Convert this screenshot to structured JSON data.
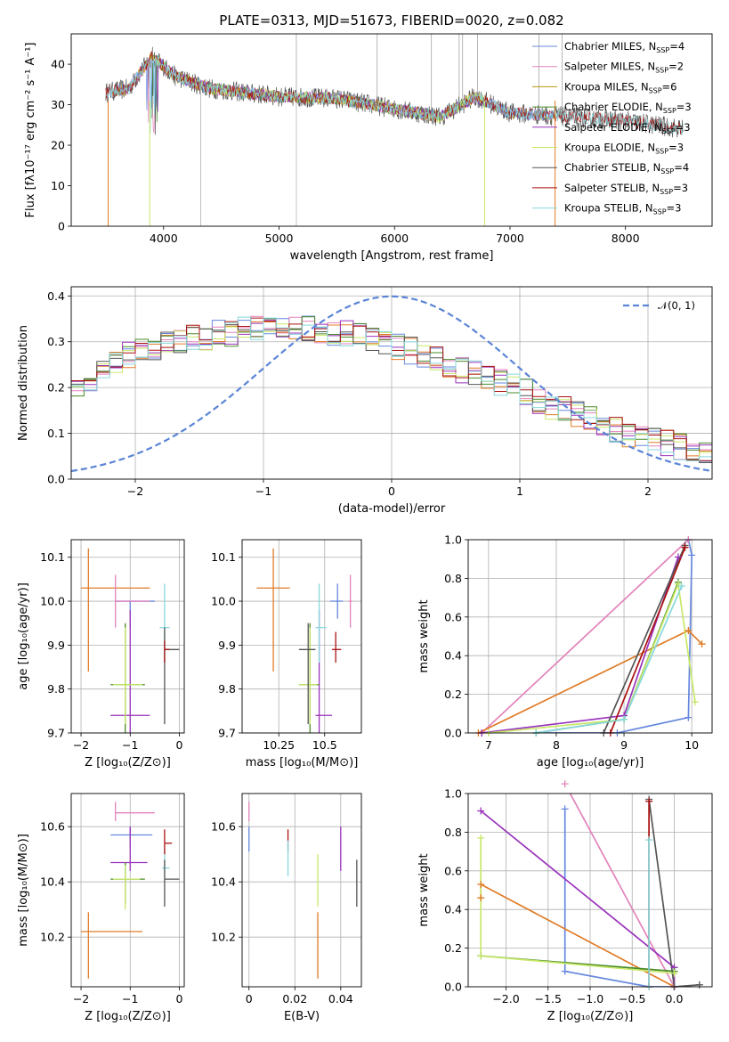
{
  "title": "PLATE=0313, MJD=51673, FIBERID=0020, z=0.082",
  "colors": {
    "Chabrier MILES": "#6688dd",
    "Salpeter MILES": "#e383bb",
    "Kroupa MILES": "#b8960b",
    "Chabrier ELODIE": "#4a8a2a",
    "Salpeter ELODIE": "#9933bb",
    "Kroupa ELODIE": "#c8e868",
    "Chabrier STELIB": "#555555",
    "Salpeter STELIB": "#aa1111",
    "Kroupa STELIB": "#88d8dd",
    "accent_orange": "#e07b26",
    "normal_curve": "#5b85d6"
  },
  "chart_data": [
    {
      "type": "line",
      "id": "spectrum",
      "xlabel": "wavelength [Angstrom, rest frame]",
      "ylabel": "Flux [fλ10⁻¹⁷ erg cm⁻² s⁻¹ A⁻¹]",
      "xlim": [
        3200,
        8750
      ],
      "ylim": [
        0,
        47.5
      ],
      "xticks": [
        4000,
        5000,
        6000,
        7000,
        8000
      ],
      "yticks": [
        0,
        10,
        20,
        30,
        40
      ],
      "grid": false,
      "legend_position": "top-right",
      "continuum": {
        "x": [
          3500,
          3700,
          3900,
          4100,
          4400,
          5000,
          5500,
          6000,
          6400,
          6700,
          7000,
          7500,
          8000,
          8500
        ],
        "y": [
          33,
          34,
          42,
          37,
          34,
          32,
          31.5,
          29,
          27,
          32,
          28,
          27,
          26,
          24
        ]
      },
      "series": [
        {
          "name": "Chabrier MILES, N$_{SSP}$=4",
          "legend": [
            "Chabrier MILES, N",
            "SSP",
            "=4"
          ],
          "x_range": [
            3540,
            7400
          ]
        },
        {
          "name": "Salpeter MILES, N$_{SSP}$=2",
          "legend": [
            "Salpeter MILES, N",
            "SSP",
            "=2"
          ],
          "x_range": [
            3540,
            7400
          ]
        },
        {
          "name": "Kroupa MILES, N$_{SSP}$=6",
          "legend": [
            "Kroupa MILES, N",
            "SSP",
            "=6"
          ],
          "x_range": [
            3540,
            7400
          ]
        },
        {
          "name": "Chabrier ELODIE, N$_{SSP}$=3",
          "legend": [
            "Chabrier ELODIE, N",
            "SSP",
            "=3"
          ],
          "x_range": [
            3900,
            6800
          ]
        },
        {
          "name": "Salpeter ELODIE, N$_{SSP}$=3",
          "legend": [
            "Salpeter ELODIE, N",
            "SSP",
            "=3"
          ],
          "x_range": [
            3900,
            6800
          ]
        },
        {
          "name": "Kroupa ELODIE, N$_{SSP}$=3",
          "legend": [
            "Kroupa ELODIE, N",
            "SSP",
            "=3"
          ],
          "x_range": [
            3900,
            6800
          ]
        },
        {
          "name": "Chabrier STELIB, N$_{SSP}$=4",
          "legend": [
            "Chabrier STELIB, N",
            "SSP",
            "=4"
          ],
          "x_range": [
            3500,
            8500
          ]
        },
        {
          "name": "Salpeter STELIB, N$_{SSP}$=3",
          "legend": [
            "Salpeter STELIB, N",
            "SSP",
            "=3"
          ],
          "x_range": [
            3500,
            8500
          ]
        },
        {
          "name": "Kroupa STELIB, N$_{SSP}$=3",
          "legend": [
            "Kroupa STELIB, N",
            "SSP",
            "=3"
          ],
          "x_range": [
            3500,
            8500
          ]
        }
      ]
    },
    {
      "type": "line",
      "id": "residuals",
      "xlabel": "(data-model)/error",
      "ylabel": "Normed distribution",
      "xlim": [
        -2.5,
        2.5
      ],
      "ylim": [
        0,
        0.42
      ],
      "xticks": [
        -2,
        -1,
        0,
        1,
        2
      ],
      "yticks": [
        0.0,
        0.1,
        0.2,
        0.3,
        0.4
      ],
      "grid": true,
      "legend_position": "top-right",
      "normal_label": "𝒩(0, 1)",
      "bin_width": 0.1,
      "histogram_profile": [
        0.06,
        0.07,
        0.09,
        0.1,
        0.12,
        0.13,
        0.14,
        0.16,
        0.17,
        0.19,
        0.21,
        0.22,
        0.24,
        0.25,
        0.27,
        0.28,
        0.29,
        0.3,
        0.3,
        0.31,
        0.31,
        0.32,
        0.32,
        0.33,
        0.33,
        0.33,
        0.33,
        0.33,
        0.33,
        0.32,
        0.32,
        0.32,
        0.31,
        0.3,
        0.3,
        0.29,
        0.28,
        0.27,
        0.26,
        0.25,
        0.24,
        0.23,
        0.22,
        0.21,
        0.2,
        0.19,
        0.17,
        0.16,
        0.15,
        0.14,
        0.13,
        0.12,
        0.11,
        0.1,
        0.09,
        0.09,
        0.08,
        0.07,
        0.06,
        0.06,
        0.05,
        0.05,
        0.05,
        0.04,
        0.04,
        0.04,
        0.04,
        0.04,
        0.04,
        0.04
      ]
    },
    {
      "type": "scatter",
      "id": "age_vs_Z",
      "xlabel": "Z [log₁₀(Z/Z⊙)]",
      "ylabel": "age  [log₁₀(age/yr)]",
      "xlim": [
        -2.2,
        0.1
      ],
      "ylim": [
        9.7,
        10.14
      ],
      "xticks": [
        -2,
        -1,
        0
      ],
      "yticks": [
        9.7,
        9.8,
        9.9,
        10.0,
        10.1
      ],
      "grid": true,
      "points": [
        {
          "k": "accent_orange",
          "x": -1.85,
          "y": 10.03,
          "xe": [
            -2.0,
            -0.6
          ],
          "ye": [
            9.84,
            10.12
          ]
        },
        {
          "k": "Chabrier MILES",
          "x": -1.0,
          "y": 10.0,
          "xe": [
            -1.3,
            -0.5
          ],
          "ye": [
            9.94,
            10.0
          ]
        },
        {
          "k": "Salpeter MILES",
          "x": -1.3,
          "y": 10.0,
          "xe": [
            -1.3,
            -0.6
          ],
          "ye": [
            9.94,
            10.06
          ]
        },
        {
          "k": "Salpeter ELODIE",
          "x": -1.0,
          "y": 9.74,
          "xe": [
            -1.4,
            -0.6
          ],
          "ye": [
            9.7,
            9.98
          ]
        },
        {
          "k": "Chabrier ELODIE",
          "x": -1.1,
          "y": 9.81,
          "xe": [
            -1.4,
            -0.7
          ],
          "ye": [
            9.7,
            9.95
          ]
        },
        {
          "k": "Kroupa ELODIE",
          "x": -1.1,
          "y": 9.81,
          "xe": [
            -1.35,
            -0.75
          ],
          "ye": [
            9.72,
            9.94
          ]
        },
        {
          "k": "Kroupa STELIB",
          "x": -0.3,
          "y": 9.94,
          "xe": [
            -0.4,
            -0.2
          ],
          "ye": [
            9.86,
            10.04
          ]
        },
        {
          "k": "Chabrier STELIB",
          "x": -0.3,
          "y": 9.89,
          "xe": [
            -0.3,
            0.0
          ],
          "ye": [
            9.72,
            9.94
          ]
        },
        {
          "k": "Salpeter STELIB",
          "x": -0.3,
          "y": 9.89,
          "xe": [
            -0.3,
            -0.2
          ],
          "ye": [
            9.86,
            9.91
          ]
        }
      ]
    },
    {
      "type": "scatter",
      "id": "age_vs_mass",
      "xlabel": "mass [log₁₀(M/M⊙)]",
      "ylabel": "",
      "xlim": [
        10.05,
        10.7
      ],
      "ylim": [
        9.7,
        10.14
      ],
      "xticks": [
        10.25,
        10.5
      ],
      "yticks": [
        9.7,
        9.8,
        9.9,
        10.0,
        10.1
      ],
      "grid": true,
      "points": [
        {
          "k": "accent_orange",
          "x": 10.22,
          "y": 10.03,
          "xe": [
            10.13,
            10.31
          ],
          "ye": [
            9.84,
            10.12
          ]
        },
        {
          "k": "Chabrier MILES",
          "x": 10.57,
          "y": 10.0,
          "xe": [
            10.53,
            10.6
          ],
          "ye": [
            9.96,
            10.04
          ]
        },
        {
          "k": "Salpeter MILES",
          "x": 10.64,
          "y": 10.0,
          "xe": [
            10.63,
            10.65
          ],
          "ye": [
            9.94,
            10.06
          ]
        },
        {
          "k": "Salpeter ELODIE",
          "x": 10.47,
          "y": 9.74,
          "xe": [
            10.45,
            10.54
          ],
          "ye": [
            9.7,
            9.98
          ]
        },
        {
          "k": "Chabrier ELODIE",
          "x": 10.42,
          "y": 9.81,
          "xe": [
            10.36,
            10.47
          ],
          "ye": [
            9.7,
            9.95
          ]
        },
        {
          "k": "Kroupa ELODIE",
          "x": 10.42,
          "y": 9.81,
          "xe": [
            10.36,
            10.46
          ],
          "ye": [
            9.72,
            9.94
          ]
        },
        {
          "k": "Kroupa STELIB",
          "x": 10.47,
          "y": 9.94,
          "xe": [
            10.45,
            10.51
          ],
          "ye": [
            9.86,
            10.04
          ]
        },
        {
          "k": "Chabrier STELIB",
          "x": 10.41,
          "y": 9.89,
          "xe": [
            10.36,
            10.45
          ],
          "ye": [
            9.72,
            9.95
          ]
        },
        {
          "k": "Salpeter STELIB",
          "x": 10.56,
          "y": 9.89,
          "xe": [
            10.54,
            10.59
          ],
          "ye": [
            9.86,
            9.93
          ]
        }
      ]
    },
    {
      "type": "line",
      "id": "weight_vs_age",
      "xlabel": "age  [log₁₀(age/yr)]",
      "ylabel": "mass weight",
      "xlim": [
        6.7,
        10.3
      ],
      "ylim": [
        0,
        1
      ],
      "xticks": [
        7,
        8,
        9,
        10
      ],
      "yticks": [
        0.0,
        0.2,
        0.4,
        0.6,
        0.8,
        1.0
      ],
      "grid": true,
      "series": [
        {
          "k": "Chabrier MILES",
          "x": [
            7.7,
            8.9,
            9.95,
            10.0,
            9.95
          ],
          "y": [
            0.0,
            0.0,
            0.08,
            0.92,
            1.0
          ]
        },
        {
          "k": "Salpeter MILES",
          "x": [
            6.9,
            9.95
          ],
          "y": [
            0.0,
            1.0
          ]
        },
        {
          "k": "accent_orange",
          "x": [
            6.85,
            9.95,
            10.15
          ],
          "y": [
            0.0,
            0.53,
            0.46
          ]
        },
        {
          "k": "Chabrier ELODIE",
          "x": [
            7.7,
            9.0,
            9.8
          ],
          "y": [
            0.0,
            0.07,
            0.78
          ]
        },
        {
          "k": "Salpeter ELODIE",
          "x": [
            6.9,
            9.0,
            9.8
          ],
          "y": [
            0.0,
            0.09,
            0.91
          ]
        },
        {
          "k": "Kroupa ELODIE",
          "x": [
            7.0,
            9.0,
            9.8,
            10.05
          ],
          "y": [
            0.0,
            0.07,
            0.77,
            0.16
          ]
        },
        {
          "k": "Chabrier STELIB",
          "x": [
            8.7,
            9.9
          ],
          "y": [
            0.0,
            0.97
          ]
        },
        {
          "k": "Salpeter STELIB",
          "x": [
            8.8,
            9.9
          ],
          "y": [
            0.0,
            0.96
          ]
        },
        {
          "k": "Kroupa STELIB",
          "x": [
            7.7,
            9.0,
            9.85
          ],
          "y": [
            0.0,
            0.07,
            0.76
          ]
        }
      ]
    },
    {
      "type": "scatter",
      "id": "mass_vs_Z",
      "xlabel": "Z [log₁₀(Z/Z⊙)]",
      "ylabel": "mass [log₁₀(M/M⊙)]",
      "xlim": [
        -2.2,
        0.1
      ],
      "ylim": [
        10.02,
        10.72
      ],
      "xticks": [
        -2,
        -1,
        0
      ],
      "yticks": [
        10.2,
        10.4,
        10.6
      ],
      "grid": true,
      "points": [
        {
          "k": "accent_orange",
          "x": -1.85,
          "y": 10.22,
          "xe": [
            -2.0,
            -0.75
          ],
          "ye": [
            10.05,
            10.29
          ]
        },
        {
          "k": "Salpeter MILES",
          "x": -1.3,
          "y": 10.65,
          "xe": [
            -1.3,
            -0.5
          ],
          "ye": [
            10.62,
            10.69
          ]
        },
        {
          "k": "Chabrier MILES",
          "x": -1.0,
          "y": 10.57,
          "xe": [
            -1.4,
            -0.55
          ],
          "ye": [
            10.52,
            10.6
          ]
        },
        {
          "k": "Salpeter ELODIE",
          "x": -1.0,
          "y": 10.47,
          "xe": [
            -1.4,
            -0.65
          ],
          "ye": [
            10.44,
            10.6
          ]
        },
        {
          "k": "Chabrier ELODIE",
          "x": -1.1,
          "y": 10.41,
          "xe": [
            -1.4,
            -0.7
          ],
          "ye": [
            10.32,
            10.47
          ]
        },
        {
          "k": "Kroupa ELODIE",
          "x": -1.1,
          "y": 10.41,
          "xe": [
            -1.35,
            -0.8
          ],
          "ye": [
            10.3,
            10.46
          ]
        },
        {
          "k": "Kroupa STELIB",
          "x": -0.3,
          "y": 10.45,
          "xe": [
            -0.35,
            -0.2
          ],
          "ye": [
            10.42,
            10.52
          ]
        },
        {
          "k": "Chabrier STELIB",
          "x": -0.3,
          "y": 10.41,
          "xe": [
            -0.3,
            0.0
          ],
          "ye": [
            10.31,
            10.48
          ]
        },
        {
          "k": "Salpeter STELIB",
          "x": -0.3,
          "y": 10.54,
          "xe": [
            -0.3,
            -0.15
          ],
          "ye": [
            10.5,
            10.59
          ]
        }
      ]
    },
    {
      "type": "scatter",
      "id": "mass_vs_ebv",
      "xlabel": "E(B-V)",
      "ylabel": "",
      "xlim": [
        -0.003,
        0.049
      ],
      "ylim": [
        10.02,
        10.72
      ],
      "xticks": [
        0.0,
        0.02,
        0.04
      ],
      "yticks": [
        10.2,
        10.4,
        10.6
      ],
      "grid": true,
      "points": [
        {
          "k": "Salpeter MILES",
          "x": 0.0,
          "y": 10.65,
          "ye": [
            10.62,
            10.69
          ]
        },
        {
          "k": "Chabrier MILES",
          "x": 0.0,
          "y": 10.57,
          "ye": [
            10.51,
            10.6
          ]
        },
        {
          "k": "Salpeter STELIB",
          "x": 0.017,
          "y": 10.55,
          "ye": [
            10.51,
            10.59
          ]
        },
        {
          "k": "Kroupa STELIB",
          "x": 0.017,
          "y": 10.5,
          "ye": [
            10.42,
            10.55
          ]
        },
        {
          "k": "Kroupa ELODIE",
          "x": 0.03,
          "y": 10.4,
          "ye": [
            10.31,
            10.5
          ]
        },
        {
          "k": "accent_orange",
          "x": 0.03,
          "y": 10.2,
          "ye": [
            10.05,
            10.29
          ]
        },
        {
          "k": "Salpeter ELODIE",
          "x": 0.04,
          "y": 10.52,
          "ye": [
            10.44,
            10.6
          ]
        },
        {
          "k": "Chabrier STELIB",
          "x": 0.047,
          "y": 10.4,
          "ye": [
            10.31,
            10.48
          ]
        }
      ]
    },
    {
      "type": "line",
      "id": "weight_vs_Z",
      "xlabel": "Z [log₁₀(Z/Z⊙)]",
      "ylabel": "mass weight",
      "xlim": [
        -2.45,
        0.45
      ],
      "ylim": [
        0,
        1
      ],
      "xticks": [
        -2.0,
        -1.5,
        -1.0,
        -0.5,
        0.0
      ],
      "xtick_labels": [
        "−2.0",
        "−1.5",
        "−1.0",
        "−0.5",
        "0.0"
      ],
      "yticks": [
        0.0,
        0.2,
        0.4,
        0.6,
        0.8,
        1.0
      ],
      "grid": true,
      "series": [
        {
          "k": "Chabrier MILES",
          "x": [
            -1.3,
            -1.3,
            -0.3,
            0.0
          ],
          "y": [
            0.92,
            0.08,
            0.0,
            0.0
          ]
        },
        {
          "k": "Salpeter MILES",
          "x": [
            -1.3,
            0.0
          ],
          "y": [
            1.05,
            0.0
          ]
        },
        {
          "k": "accent_orange",
          "x": [
            -2.3,
            -2.3,
            0.0
          ],
          "y": [
            0.46,
            0.53,
            0.0
          ]
        },
        {
          "k": "Salpeter ELODIE",
          "x": [
            -2.3,
            0.0,
            0.0
          ],
          "y": [
            0.91,
            0.1,
            0.0
          ]
        },
        {
          "k": "Chabrier ELODIE",
          "x": [
            -2.3,
            0.0
          ],
          "y": [
            0.16,
            0.08
          ]
        },
        {
          "k": "Kroupa ELODIE",
          "x": [
            -2.3,
            -2.3,
            0.0
          ],
          "y": [
            0.77,
            0.16,
            0.07
          ]
        },
        {
          "k": "Chabrier STELIB",
          "x": [
            -0.3,
            0.0,
            0.3
          ],
          "y": [
            0.97,
            0.0,
            0.01
          ]
        },
        {
          "k": "Salpeter STELIB",
          "x": [
            -0.3,
            -0.3
          ],
          "y": [
            0.96,
            0.0
          ]
        },
        {
          "k": "Kroupa STELIB",
          "x": [
            -0.3,
            -0.3
          ],
          "y": [
            0.76,
            0.0
          ]
        }
      ]
    }
  ]
}
